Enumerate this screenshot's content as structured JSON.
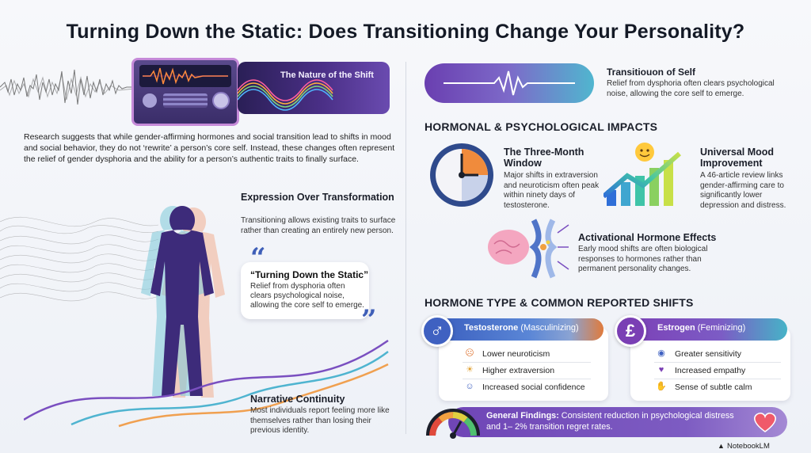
{
  "title": "Turning Down the Static: Does Transitioning Change Your Personality?",
  "hero": {
    "title": "The Nature of the Shift"
  },
  "intro": "Research suggests that while gender-affirming hormones and social transition lead to shifts in mood and social behavior, they do not ‘rewrite’ a person’s core self. Instead, these changes often represent the relief of gender dysphoria and the ability for a person’s authentic traits to finally surface.",
  "expression": {
    "heading": "Expression Over Transformation",
    "text": "Transitioning allows existing traits to surface rather than creating an entirely new person."
  },
  "quote": {
    "title": "“Turning Down the Static”",
    "text": "Relief from dysphoria often clears psychological noise, allowing the core self to emerge."
  },
  "narrative": {
    "heading": "Narrative Continuity",
    "text": "Most individuals report feeling more like themselves rather than losing their previous identity."
  },
  "transition": {
    "heading": "Transitiouon of Self",
    "text": "Relief from dysphoria often clears psychological noise, allowing the core self to emerge."
  },
  "sections": {
    "hormonal": "HORMONAL & PSYCHOLOGICAL IMPACTS",
    "type": "HORMONE TYPE & COMMON REPORTED SHIFTS"
  },
  "window": {
    "heading": "The Three-Month Window",
    "text": "Major shifts in extraversion and neuroticism often peak within ninety days of testosterone."
  },
  "mood": {
    "heading": "Universal Mood Improvement",
    "text": "A 46-article review links gender-affirming care to significantly lower depression and distress."
  },
  "activational": {
    "heading": "Activational Hormone Effects",
    "text": "Early mood shifts are often biological responses to hormones rather than permanent personality changes."
  },
  "testosterone": {
    "symbol": "♂",
    "name": "Testosterone",
    "qualifier": "(Masculinizing)",
    "items": [
      {
        "icon": "worried-face-icon",
        "glyph": "☹",
        "label": "Lower neuroticism"
      },
      {
        "icon": "lightbulb-icon",
        "glyph": "☀",
        "label": "Higher extraversion"
      },
      {
        "icon": "people-icon",
        "glyph": "☺",
        "label": "Increased social confidence"
      }
    ]
  },
  "estrogen": {
    "symbol": "£",
    "name": "Estrogen",
    "qualifier": "(Feminizing)",
    "items": [
      {
        "icon": "eye-icon",
        "glyph": "◉",
        "label": "Greater sensitivity"
      },
      {
        "icon": "heart-icon",
        "glyph": "♥",
        "label": "Increased empathy"
      },
      {
        "icon": "hand-icon",
        "glyph": "✋",
        "label": "Sense of subtle calm"
      }
    ]
  },
  "findings": {
    "label": "General Findings:",
    "text": " Consistent reduction in psychological distress and 1– 2% transition regret rates."
  },
  "footer": "NotebookLM",
  "colors": {
    "accent_purple": "#6f45b6",
    "accent_blue": "#3f61c1",
    "accent_teal": "#50b6cf",
    "accent_orange": "#e07b3c"
  }
}
